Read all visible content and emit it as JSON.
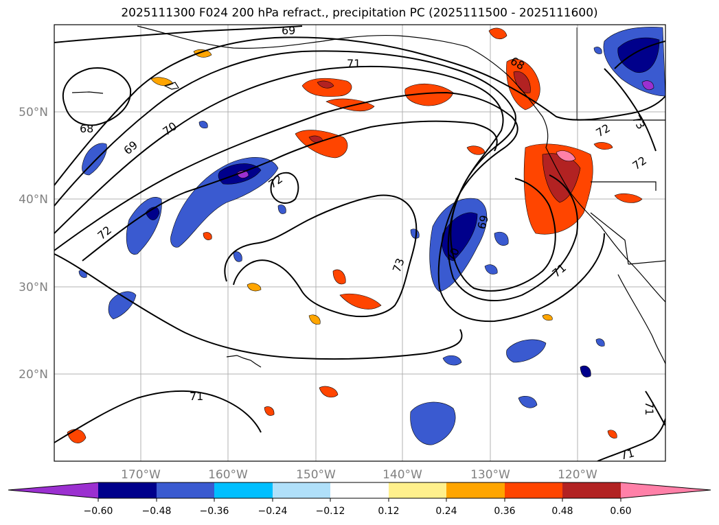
{
  "title": "2025111300 F024 200 hPa refract., precipitation PC (2025111500 - 2025111600)",
  "lat_ticks": [
    "50°N",
    "40°N",
    "30°N",
    "20°N"
  ],
  "lon_ticks": [
    "170°W",
    "160°W",
    "150°W",
    "140°W",
    "130°W",
    "120°W"
  ],
  "contour_labels": [
    "69",
    "71",
    "68",
    "68",
    "70",
    "69",
    "72",
    "72",
    "73",
    "70",
    "69",
    "71",
    "72",
    "72",
    "73",
    "71",
    "71",
    "71"
  ],
  "colorbar": {
    "tick_labels": [
      "−0.60",
      "−0.48",
      "−0.36",
      "−0.24",
      "−0.12",
      "0.12",
      "0.24",
      "0.36",
      "0.48",
      "0.60"
    ],
    "colors": [
      "#9b30d0",
      "#00008b",
      "#3a5ad0",
      "#00bfff",
      "#b0e0fa",
      "#ffffff",
      "#fff08c",
      "#ffa500",
      "#ff4500",
      "#b22222",
      "#ff80a8"
    ]
  },
  "colors": {
    "coast": "#000000",
    "contour": "#000000",
    "grid": "#a9a9a9",
    "pos_light": "#fff08c",
    "pos_mid": "#ffa500",
    "pos_strong": "#ff4500",
    "pos_max": "#b22222",
    "neg_light": "#00bfff",
    "neg_mid": "#3a5ad0",
    "neg_strong": "#00008b",
    "neg_max": "#9b30d0"
  }
}
